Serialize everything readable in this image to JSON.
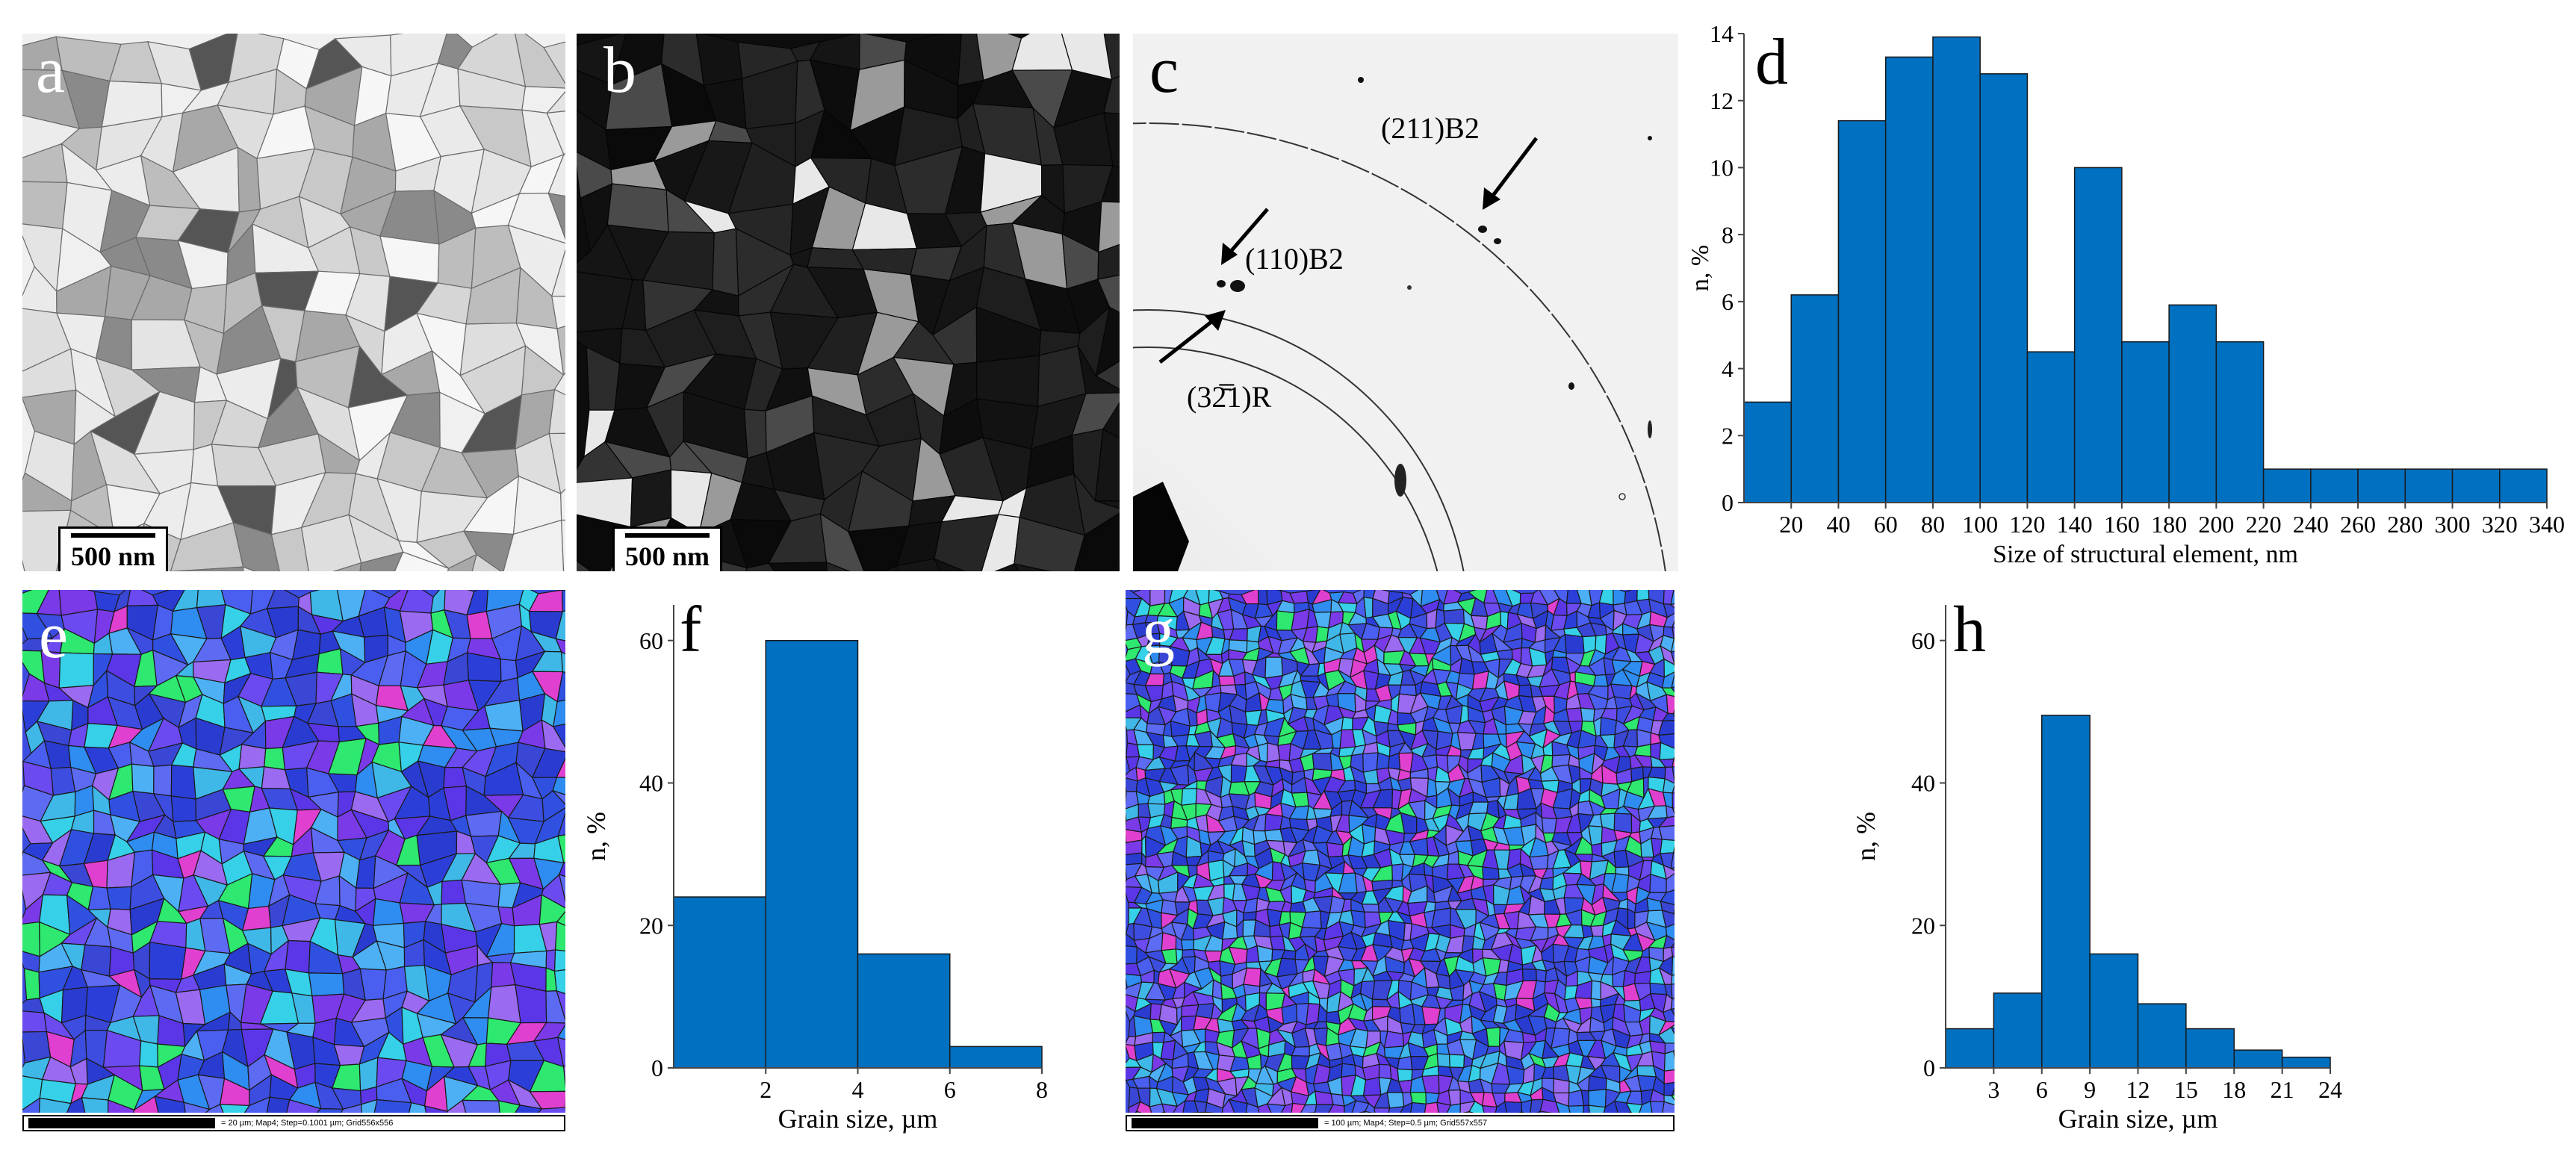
{
  "panels": {
    "a": {
      "label": "a",
      "scale": "500 nm"
    },
    "b": {
      "label": "b",
      "scale": "500 nm"
    },
    "c": {
      "label": "c",
      "ring1": "(211)B2",
      "ring2": "(110)B2",
      "ring3": "(32̄̅1)R"
    },
    "d": {
      "label": "d"
    },
    "e": {
      "label": "e",
      "caption": "= 20 µm; Map4; Step=0.1001 µm; Grid556x556"
    },
    "f": {
      "label": "f"
    },
    "g": {
      "label": "g",
      "caption": "= 100 µm; Map4; Step=0.5 µm; Grid557x557"
    },
    "h": {
      "label": "h"
    }
  },
  "colors": {
    "bar": "#0070c0",
    "bar_edge": "#1a1a1a"
  },
  "chart_data": [
    {
      "id": "d",
      "type": "bar",
      "xlabel": "Size of structural element, nm",
      "ylabel": "n, %",
      "ylim": [
        0,
        14
      ],
      "yticks": [
        0,
        2,
        4,
        6,
        8,
        10,
        12,
        14
      ],
      "xlim": [
        0,
        340
      ],
      "xticks": [
        20,
        40,
        60,
        80,
        100,
        120,
        140,
        160,
        180,
        200,
        220,
        240,
        260,
        280,
        300,
        320,
        340
      ],
      "bin_width": 20,
      "bin_starts": [
        0,
        20,
        40,
        60,
        80,
        100,
        120,
        140,
        160,
        180,
        200,
        220,
        240,
        260,
        280,
        300,
        320
      ],
      "values": [
        3,
        6.2,
        11.4,
        13.3,
        13.9,
        12.8,
        4.5,
        10,
        4.8,
        5.9,
        4.8,
        1,
        1,
        1,
        1,
        1,
        1
      ]
    },
    {
      "id": "f",
      "type": "bar",
      "xlabel": "Grain size, µm",
      "ylabel": "n, %",
      "ylim": [
        0,
        65
      ],
      "yticks": [
        0,
        20,
        40,
        60
      ],
      "xlim": [
        0,
        8
      ],
      "xticks": [
        2,
        4,
        6,
        8
      ],
      "bin_width": 2,
      "bin_starts": [
        0,
        2,
        4,
        6
      ],
      "values": [
        24,
        60,
        16,
        3
      ]
    },
    {
      "id": "h",
      "type": "bar",
      "xlabel": "Grain size, µm",
      "ylabel": "n, %",
      "ylim": [
        0,
        65
      ],
      "yticks": [
        0,
        20,
        40,
        60
      ],
      "xlim": [
        0,
        24
      ],
      "xticks": [
        3,
        6,
        9,
        12,
        15,
        18,
        21,
        24
      ],
      "bin_width": 3,
      "bin_starts": [
        0,
        3,
        6,
        9,
        12,
        15,
        18,
        21
      ],
      "values": [
        5.5,
        10.5,
        49.5,
        16,
        9,
        5.5,
        2.5,
        1.5
      ]
    }
  ]
}
